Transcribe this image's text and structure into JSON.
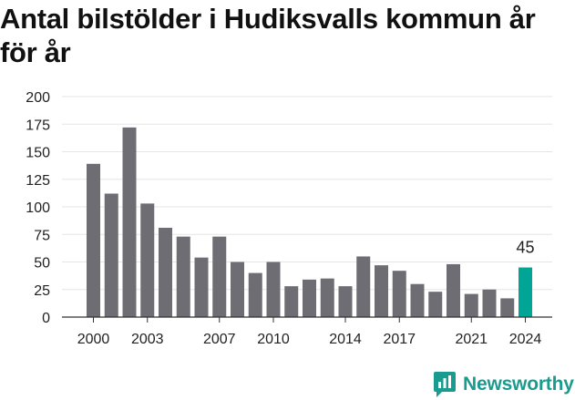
{
  "title": "Antal bilstölder i Hudiksvalls kommun år för år",
  "brand": {
    "name": "Newsworthy",
    "icon": "newsworthy-logo-icon",
    "color": "#1a9b8f"
  },
  "colors": {
    "bar": "#6e6d73",
    "highlight": "#00a596",
    "grid": "#e6e6e6",
    "axis": "#333333"
  },
  "chart_data": {
    "type": "bar",
    "title": "Antal bilstölder i Hudiksvalls kommun år för år",
    "xlabel": "",
    "ylabel": "",
    "ylim": [
      0,
      200
    ],
    "yticks": [
      0,
      25,
      50,
      75,
      100,
      125,
      150,
      175,
      200
    ],
    "categories": [
      "2000",
      "2001",
      "2002",
      "2003",
      "2004",
      "2005",
      "2006",
      "2007",
      "2008",
      "2009",
      "2010",
      "2011",
      "2012",
      "2013",
      "2014",
      "2015",
      "2016",
      "2017",
      "2018",
      "2019",
      "2020",
      "2021",
      "2022",
      "2023",
      "2024"
    ],
    "xtick_labels": [
      "2000",
      "2003",
      "2007",
      "2010",
      "2014",
      "2017",
      "2021",
      "2024"
    ],
    "values": [
      139,
      112,
      172,
      103,
      81,
      73,
      54,
      73,
      50,
      40,
      50,
      28,
      34,
      35,
      28,
      55,
      47,
      42,
      30,
      23,
      48,
      21,
      25,
      17,
      45
    ],
    "highlight": {
      "category": "2024",
      "value": 45,
      "label": "45"
    },
    "grid": true,
    "legend": "none"
  }
}
